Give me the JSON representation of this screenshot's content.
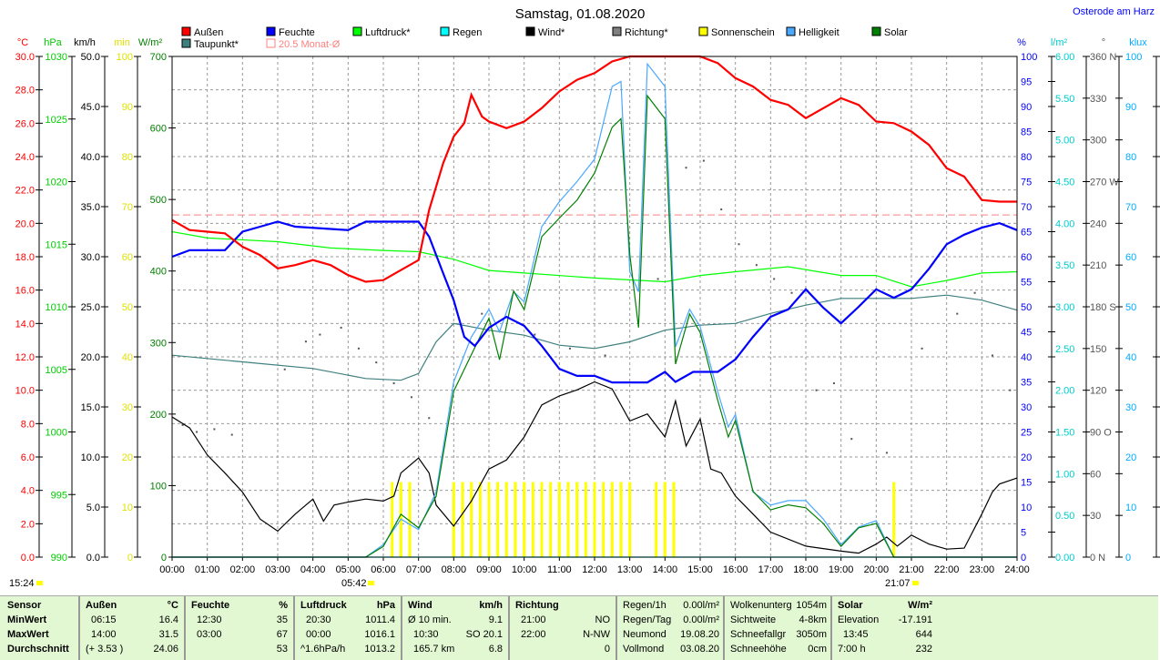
{
  "header": {
    "title": "Samstag, 01.08.2020",
    "location": "Osterode am Harz"
  },
  "legend": [
    {
      "label": "Außen",
      "color": "#ff0000"
    },
    {
      "label": "Feuchte",
      "color": "#0000ff"
    },
    {
      "label": "Luftdruck*",
      "color": "#00ff00"
    },
    {
      "label": "Regen",
      "color": "#00ffff"
    },
    {
      "label": "Wind*",
      "color": "#000000"
    },
    {
      "label": "Richtung*",
      "color": "#808080"
    },
    {
      "label": "Sonnenschein",
      "color": "#ffff00"
    },
    {
      "label": "Helligkeit",
      "color": "#4aa8ff"
    },
    {
      "label": "Solar",
      "color": "#008000"
    },
    {
      "label": "Taupunkt*",
      "color": "#3f7f7f"
    },
    {
      "label": "20.5 Monat-Ø",
      "color": "#ff8080"
    }
  ],
  "markers": {
    "current_time": "15:24",
    "sunrise": "05:42",
    "sunset": "21:07"
  },
  "chart_data": {
    "type": "line",
    "title": "Samstag, 01.08.2020",
    "x_range": [
      0,
      24
    ],
    "x_ticks": [
      "00:00",
      "01:00",
      "02:00",
      "03:00",
      "04:00",
      "05:00",
      "06:00",
      "07:00",
      "08:00",
      "09:00",
      "10:00",
      "11:00",
      "12:00",
      "13:00",
      "14:00",
      "15:00",
      "16:00",
      "17:00",
      "18:00",
      "19:00",
      "20:00",
      "21:00",
      "22:00",
      "23:00",
      "24:00"
    ],
    "grid": true,
    "axes": {
      "temp": {
        "unit": "°C",
        "range": [
          0,
          30
        ],
        "ticks": [
          "0.0",
          "2.0",
          "4.0",
          "6.0",
          "8.0",
          "10.0",
          "12.0",
          "14.0",
          "16.0",
          "18.0",
          "20.0",
          "22.0",
          "24.0",
          "26.0",
          "28.0",
          "30.0"
        ],
        "color": "#ff0000"
      },
      "pressure": {
        "unit": "hPa",
        "range": [
          990,
          1030
        ],
        "ticks": [
          "990",
          "995",
          "1000",
          "1005",
          "1010",
          "1015",
          "1020",
          "1025",
          "1030"
        ],
        "color": "#00cc00"
      },
      "wind": {
        "unit": "km/h",
        "range": [
          0,
          50
        ],
        "ticks": [
          "0.0",
          "5.0",
          "10.0",
          "15.0",
          "20.0",
          "25.0",
          "30.0",
          "35.0",
          "40.0",
          "45.0",
          "50.0"
        ],
        "color": "#000000"
      },
      "sun": {
        "unit": "min",
        "range": [
          0,
          100
        ],
        "ticks": [
          "0",
          "10",
          "20",
          "30",
          "40",
          "50",
          "60",
          "70",
          "80",
          "90",
          "100"
        ],
        "color": "#e0e000"
      },
      "solar": {
        "unit": "W/m²",
        "range": [
          0,
          700
        ],
        "ticks": [
          "0",
          "100",
          "200",
          "300",
          "400",
          "500",
          "600",
          "700"
        ],
        "color": "#008000"
      },
      "humidity": {
        "unit": "%",
        "range": [
          0,
          100
        ],
        "ticks": [
          "0",
          "5",
          "10",
          "15",
          "20",
          "25",
          "30",
          "35",
          "40",
          "45",
          "50",
          "55",
          "60",
          "65",
          "70",
          "75",
          "80",
          "85",
          "90",
          "95",
          "100"
        ],
        "color": "#0000ff"
      },
      "rain": {
        "unit": "l/m²",
        "range": [
          0,
          6
        ],
        "ticks": [
          "0.00",
          "0.50",
          "1.00",
          "1.50",
          "2.00",
          "2.50",
          "3.00",
          "3.50",
          "4.00",
          "4.50",
          "5.00",
          "5.50",
          "6.00"
        ],
        "color": "#00cccc"
      },
      "direction": {
        "unit": "°",
        "range": [
          0,
          360
        ],
        "ticks": [
          "0 N",
          "30",
          "60",
          "90 O",
          "120",
          "150",
          "180 S",
          "210",
          "240",
          "270 W",
          "300",
          "330",
          "360 N"
        ],
        "color": "#555555"
      },
      "lux": {
        "unit": "klux",
        "range": [
          0,
          100
        ],
        "ticks": [
          "0",
          "10",
          "20",
          "30",
          "40",
          "50",
          "60",
          "70",
          "80",
          "90",
          "100"
        ],
        "color": "#00aaff"
      }
    },
    "monthly_avg_temp": 20.5,
    "series": [
      {
        "name": "Außen",
        "axis": "temp",
        "color": "#ff0000",
        "x": [
          0,
          0.5,
          1,
          1.5,
          2,
          2.5,
          3,
          3.5,
          4,
          4.5,
          5,
          5.5,
          6,
          6.5,
          7,
          7.3,
          7.7,
          8,
          8.3,
          8.5,
          8.8,
          9,
          9.5,
          10,
          10.5,
          11,
          11.5,
          12,
          12.5,
          13,
          14,
          15,
          15.5,
          16,
          16.5,
          17,
          17.5,
          18,
          18.5,
          19,
          19.5,
          20,
          20.5,
          21,
          21.5,
          22,
          22.5,
          23,
          23.5,
          24
        ],
        "y": [
          20.2,
          19.6,
          19.5,
          19.4,
          18.6,
          18.1,
          17.3,
          17.5,
          17.8,
          17.5,
          16.9,
          16.5,
          16.6,
          17.2,
          17.8,
          20.8,
          23.6,
          25.2,
          26.0,
          27.7,
          26.4,
          26.1,
          25.7,
          26.1,
          26.9,
          27.9,
          28.6,
          29.0,
          29.7,
          30.0,
          30.1,
          30.0,
          29.6,
          28.7,
          28.2,
          27.4,
          27.1,
          26.3,
          26.9,
          27.5,
          27.1,
          26.1,
          26.0,
          25.5,
          24.7,
          23.3,
          22.8,
          21.4,
          21.3,
          21.3
        ]
      },
      {
        "name": "Feuchte",
        "axis": "humidity",
        "color": "#0000ff",
        "x": [
          0,
          0.5,
          1.5,
          2,
          2.5,
          3,
          3.5,
          5,
          5.5,
          7,
          7.3,
          7.7,
          8,
          8.3,
          8.6,
          9,
          9.5,
          10,
          10.5,
          11,
          11.5,
          12,
          12.5,
          13,
          13.5,
          14,
          14.3,
          14.8,
          15.5,
          16,
          16.5,
          17,
          17.5,
          18,
          18.5,
          19,
          19.5,
          20,
          20.5,
          21,
          21.5,
          22,
          22.5,
          23,
          23.5,
          24
        ],
        "y": [
          60,
          61.3,
          61.3,
          65,
          66,
          67,
          66,
          65.3,
          67,
          67,
          64,
          56.7,
          51.3,
          44,
          42.2,
          45.8,
          48,
          46.2,
          42.2,
          37.6,
          36.2,
          36.2,
          34.9,
          34.9,
          34.9,
          37,
          35,
          37,
          37,
          39.5,
          44,
          48,
          49.5,
          53.5,
          49.8,
          46.7,
          50,
          53.5,
          51.8,
          53.5,
          57.6,
          62.5,
          64.4,
          65.8,
          66.7,
          65.3
        ]
      },
      {
        "name": "Luftdruck*",
        "axis": "pressure",
        "color": "#00ff00",
        "x": [
          0,
          1,
          3,
          4.5,
          6,
          7,
          8,
          9,
          10,
          12,
          14,
          15,
          16,
          17.5,
          19,
          20,
          21,
          22,
          23,
          24
        ],
        "y": [
          1016.0,
          1015.5,
          1015.2,
          1014.7,
          1014.5,
          1014.4,
          1013.8,
          1012.9,
          1012.7,
          1012.3,
          1012.0,
          1012.5,
          1012.8,
          1013.2,
          1012.5,
          1012.5,
          1011.6,
          1012.1,
          1012.7,
          1012.8
        ]
      },
      {
        "name": "Taupunkt*",
        "axis": "temp",
        "color": "#3f7f7f",
        "x": [
          0,
          2,
          4,
          5.5,
          6.5,
          7,
          7.5,
          8,
          9,
          10,
          11,
          12,
          13,
          14,
          15,
          16,
          17,
          18,
          19,
          20,
          21,
          22,
          23,
          24
        ],
        "y": [
          12.1,
          11.7,
          11.3,
          10.7,
          10.6,
          11.0,
          12.9,
          14.0,
          13.6,
          13.3,
          12.7,
          12.5,
          12.9,
          13.6,
          13.9,
          14.0,
          14.6,
          15.1,
          15.5,
          15.5,
          15.5,
          15.7,
          15.4,
          14.8
        ]
      },
      {
        "name": "Wind*",
        "axis": "wind",
        "color": "#000000",
        "x": [
          0,
          0.5,
          1,
          1.5,
          2,
          2.5,
          3,
          3.5,
          4,
          4.3,
          4.6,
          5,
          5.5,
          6,
          6.3,
          6.5,
          7,
          7.3,
          7.5,
          8,
          8.5,
          9,
          9.5,
          10,
          10.5,
          11,
          11.5,
          12,
          12.5,
          13,
          13.5,
          14,
          14.3,
          14.6,
          15,
          15.3,
          15.6,
          16,
          16.5,
          17,
          18,
          19,
          19.5,
          20,
          20.3,
          20.6,
          21,
          21.5,
          22,
          22.5,
          23,
          23.3,
          23.5,
          24
        ],
        "y": [
          14,
          12.9,
          10.2,
          8.4,
          6.5,
          3.8,
          2.6,
          4.3,
          5.8,
          3.6,
          5.2,
          5.5,
          5.8,
          5.6,
          6.1,
          8.4,
          9.9,
          8.4,
          5.2,
          3.1,
          5.6,
          8.8,
          9.7,
          12,
          15.2,
          16.1,
          16.7,
          17.5,
          16.8,
          13.6,
          14.3,
          12,
          15.6,
          11.1,
          13.8,
          8.8,
          8.4,
          6.1,
          4.3,
          2.5,
          1.1,
          0.6,
          0.4,
          1.3,
          2.0,
          1.1,
          2.2,
          1.3,
          0.8,
          0.9,
          4.3,
          6.5,
          7.3,
          7.9
        ]
      },
      {
        "name": "Solar",
        "axis": "solar",
        "color": "#008000",
        "x": [
          0,
          5.5,
          6,
          6.5,
          7,
          7.5,
          8,
          8.5,
          9,
          9.3,
          9.7,
          10,
          10.5,
          11,
          11.5,
          12,
          12.5,
          12.75,
          13,
          13.25,
          13.5,
          14,
          14.3,
          14.7,
          15,
          15.5,
          15.8,
          16,
          16.5,
          17,
          17.5,
          18,
          18.5,
          19,
          19.5,
          20,
          20.5,
          24
        ],
        "y": [
          0,
          0,
          15,
          60,
          41,
          85,
          232,
          283,
          334,
          276,
          372,
          346,
          448,
          474,
          499,
          537,
          601,
          613,
          423,
          321,
          645,
          613,
          270,
          340,
          314,
          219,
          168,
          191,
          92,
          66,
          73,
          69,
          47,
          15,
          41,
          47,
          0,
          0
        ]
      },
      {
        "name": "Helligkeit",
        "axis": "lux",
        "color": "#4aa8ff",
        "x": [
          0,
          5.5,
          6,
          6.5,
          7,
          7.5,
          8,
          8.5,
          9,
          9.3,
          9.7,
          10,
          10.5,
          11,
          11.5,
          12,
          12.5,
          12.75,
          13,
          13.25,
          13.5,
          14,
          14.3,
          14.7,
          15,
          15.5,
          15.8,
          16,
          16.5,
          17,
          17.5,
          18,
          18.5,
          19,
          19.5,
          20,
          20.5,
          24
        ],
        "y": [
          0,
          0,
          2.5,
          7.6,
          5.5,
          13,
          35,
          44,
          49.5,
          45,
          53,
          51,
          66,
          71,
          75,
          79.5,
          94,
          95,
          57,
          53,
          98.5,
          94,
          42,
          49.5,
          46,
          33,
          26,
          28.5,
          13,
          10.4,
          11.3,
          11.3,
          7.6,
          2.5,
          6,
          7.3,
          0,
          0
        ]
      },
      {
        "name": "Sonnenschein",
        "axis": "sun",
        "color": "#ffff00",
        "type": "bar",
        "x": [
          6.25,
          6.5,
          6.75,
          8.0,
          8.25,
          8.5,
          8.75,
          9.0,
          9.25,
          9.5,
          9.75,
          10.0,
          10.25,
          10.5,
          10.75,
          11.0,
          11.25,
          11.5,
          11.75,
          12.0,
          12.25,
          12.5,
          12.75,
          13.0,
          13.75,
          14.0,
          14.25,
          20.5
        ],
        "y": [
          15,
          15,
          15,
          15,
          15,
          15,
          15,
          15,
          15,
          15,
          15,
          15,
          15,
          15,
          15,
          15,
          15,
          15,
          15,
          15,
          15,
          15,
          15,
          15,
          15,
          15,
          15,
          15
        ]
      },
      {
        "name": "Richtung*",
        "axis": "direction",
        "color": "#555555",
        "type": "scatter",
        "x": [
          0.3,
          0.7,
          1.2,
          1.7,
          3.2,
          3.8,
          4.2,
          4.8,
          5.3,
          5.8,
          6.3,
          6.8,
          7.3,
          8.8,
          10.3,
          11.3,
          12.3,
          13.8,
          14.6,
          15.1,
          15.6,
          16.1,
          16.6,
          17.1,
          17.6,
          18.3,
          18.8,
          19.3,
          20.3,
          21.3,
          22.3,
          22.8,
          23.3,
          23.8
        ],
        "y": [
          95,
          90,
          92,
          88,
          135,
          155,
          160,
          165,
          150,
          140,
          125,
          115,
          100,
          175,
          160,
          150,
          145,
          200,
          280,
          285,
          250,
          225,
          210,
          200,
          190,
          120,
          125,
          85,
          75,
          150,
          175,
          190,
          145,
          120
        ]
      },
      {
        "name": "Regen",
        "axis": "rain",
        "color": "#00ffff",
        "x": [
          0,
          24
        ],
        "y": [
          0,
          0
        ]
      }
    ]
  },
  "stats": {
    "sensor": {
      "header": "Sensor",
      "rows": [
        "MinWert",
        "MaxWert",
        "Durchschnitt"
      ]
    },
    "aussen": {
      "header": "Außen",
      "unit": "°C",
      "min_time": "06:15",
      "min": "16.4",
      "max_time": "14:00",
      "max": "31.5",
      "avg_note": "(+ 3.53 )",
      "avg": "24.06"
    },
    "feuchte": {
      "header": "Feuchte",
      "unit": "%",
      "min_time": "12:30",
      "min": "35",
      "max_time": "03:00",
      "max": "67",
      "avg": "53"
    },
    "luftdruck": {
      "header": "Luftdruck",
      "unit": "hPa",
      "min_time": "20:30",
      "min": "1011.4",
      "max_time": "00:00",
      "max": "1016.1",
      "avg_note": "^1.6hPa/h",
      "avg": "1013.2"
    },
    "wind": {
      "header": "Wind",
      "unit": "km/h",
      "min_label": "Ø 10 min.",
      "min": "9.1",
      "max_time": "10:30",
      "max": "SO 20.1",
      "avg_note": "165.7 km",
      "avg": "6.8"
    },
    "richtung": {
      "header": "Richtung",
      "min_time": "21:00",
      "min": "NO",
      "max_time": "22:00",
      "max": "N-NW",
      "avg": "0"
    },
    "regen": [
      {
        "label": "Regen/1h",
        "value": "0.00l/m²"
      },
      {
        "label": "Regen/Tag",
        "value": "0.00l/m²"
      },
      {
        "label": "Neumond",
        "value": "19.08.20"
      },
      {
        "label": "Vollmond",
        "value": "03.08.20"
      }
    ],
    "wolken": [
      {
        "label": "Wolkenunterg",
        "value": "1054m"
      },
      {
        "label": "Sichtweite",
        "value": "4-8km"
      },
      {
        "label": "Schneefallgr",
        "value": "3050m"
      },
      {
        "label": "Schneehöhe",
        "value": "0cm"
      }
    ],
    "solar": {
      "header": "Solar",
      "unit": "W/m²",
      "rows": [
        {
          "label": "Elevation",
          "value": "-17.191"
        },
        {
          "label": "13:45",
          "value": "644"
        },
        {
          "label": "7:00 h",
          "value": "232"
        }
      ]
    }
  }
}
